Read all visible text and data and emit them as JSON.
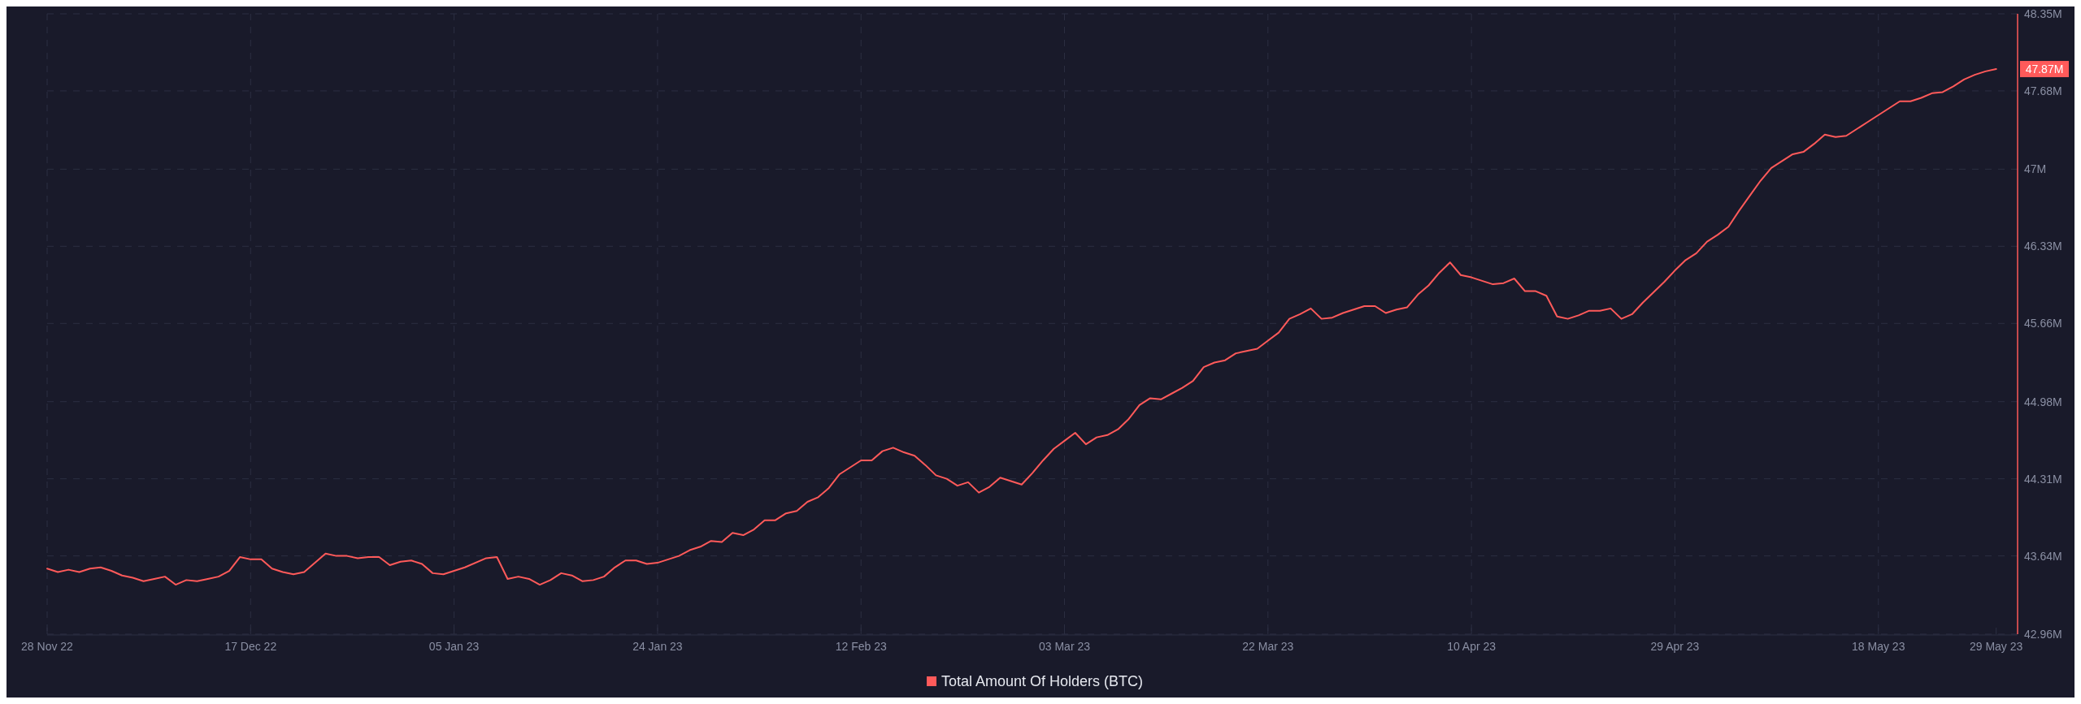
{
  "chart_data": {
    "type": "line",
    "grid": true,
    "legend": "bottom",
    "xlim": [
      "2022-11-28",
      "2023-05-31"
    ],
    "xticks": [
      {
        "value": "2022-11-28",
        "label": "28 Nov 22"
      },
      {
        "value": "2022-12-17",
        "label": "17 Dec 22"
      },
      {
        "value": "2023-01-05",
        "label": "05 Jan 23"
      },
      {
        "value": "2023-01-24",
        "label": "24 Jan 23"
      },
      {
        "value": "2023-02-12",
        "label": "12 Feb 23"
      },
      {
        "value": "2023-03-03",
        "label": "03 Mar 23"
      },
      {
        "value": "2023-03-22",
        "label": "22 Mar 23"
      },
      {
        "value": "2023-04-10",
        "label": "10 Apr 23"
      },
      {
        "value": "2023-04-29",
        "label": "29 Apr 23"
      },
      {
        "value": "2023-05-18",
        "label": "18 May 23"
      },
      {
        "value": "2023-05-29",
        "label": "29 May 23"
      }
    ],
    "ylim": [
      42.96,
      48.35
    ],
    "yticks": [
      {
        "value": 42.96,
        "label": "42.96M"
      },
      {
        "value": 43.64,
        "label": "43.64M"
      },
      {
        "value": 44.31,
        "label": "44.31M"
      },
      {
        "value": 44.98,
        "label": "44.98M"
      },
      {
        "value": 45.66,
        "label": "45.66M"
      },
      {
        "value": 46.33,
        "label": "46.33M"
      },
      {
        "value": 47,
        "label": "47M"
      },
      {
        "value": 47.68,
        "label": "47.68M"
      },
      {
        "value": 48.35,
        "label": "48.35M"
      }
    ],
    "annotations": [
      {
        "text": "47.87M",
        "x": "2023-05-29",
        "y": 47.87
      }
    ],
    "series": [
      {
        "name": "Total Amount Of Holders (BTC)",
        "color": "#ff5a5a",
        "x": [
          "2022-11-28",
          "2022-11-29",
          "2022-11-30",
          "2022-12-01",
          "2022-12-02",
          "2022-12-03",
          "2022-12-04",
          "2022-12-05",
          "2022-12-06",
          "2022-12-07",
          "2022-12-08",
          "2022-12-09",
          "2022-12-10",
          "2022-12-11",
          "2022-12-12",
          "2022-12-13",
          "2022-12-14",
          "2022-12-15",
          "2022-12-16",
          "2022-12-17",
          "2022-12-18",
          "2022-12-19",
          "2022-12-20",
          "2022-12-21",
          "2022-12-22",
          "2022-12-24",
          "2022-12-25",
          "2022-12-26",
          "2022-12-27",
          "2022-12-28",
          "2022-12-29",
          "2022-12-30",
          "2022-12-31",
          "2023-01-01",
          "2023-01-02",
          "2023-01-03",
          "2023-01-04",
          "2023-01-05",
          "2023-01-06",
          "2023-01-08",
          "2023-01-09",
          "2023-01-10",
          "2023-01-11",
          "2023-01-12",
          "2023-01-13",
          "2023-01-14",
          "2023-01-15",
          "2023-01-16",
          "2023-01-17",
          "2023-01-18",
          "2023-01-19",
          "2023-01-20",
          "2023-01-21",
          "2023-01-22",
          "2023-01-23",
          "2023-01-24",
          "2023-01-25",
          "2023-01-26",
          "2023-01-27",
          "2023-01-28",
          "2023-01-29",
          "2023-01-30",
          "2023-01-31",
          "2023-02-01",
          "2023-02-02",
          "2023-02-03",
          "2023-02-04",
          "2023-02-05",
          "2023-02-06",
          "2023-02-07",
          "2023-02-08",
          "2023-02-09",
          "2023-02-10",
          "2023-02-11",
          "2023-02-12",
          "2023-02-13",
          "2023-02-14",
          "2023-02-15",
          "2023-02-16",
          "2023-02-17",
          "2023-02-18",
          "2023-02-19",
          "2023-02-20",
          "2023-02-21",
          "2023-02-22",
          "2023-02-23",
          "2023-02-24",
          "2023-02-25",
          "2023-02-26",
          "2023-02-27",
          "2023-02-28",
          "2023-03-01",
          "2023-03-02",
          "2023-03-03",
          "2023-03-04",
          "2023-03-05",
          "2023-03-06",
          "2023-03-07",
          "2023-03-08",
          "2023-03-09",
          "2023-03-10",
          "2023-03-11",
          "2023-03-12",
          "2023-03-13",
          "2023-03-14",
          "2023-03-15",
          "2023-03-16",
          "2023-03-17",
          "2023-03-18",
          "2023-03-19",
          "2023-03-20",
          "2023-03-21",
          "2023-03-22",
          "2023-03-23",
          "2023-03-24",
          "2023-03-25",
          "2023-03-26",
          "2023-03-27",
          "2023-03-28",
          "2023-03-29",
          "2023-03-30",
          "2023-03-31",
          "2023-04-01",
          "2023-04-02",
          "2023-04-03",
          "2023-04-04",
          "2023-04-05",
          "2023-04-06",
          "2023-04-07",
          "2023-04-08",
          "2023-04-09",
          "2023-04-10",
          "2023-04-11",
          "2023-04-12",
          "2023-04-13",
          "2023-04-14",
          "2023-04-15",
          "2023-04-16",
          "2023-04-17",
          "2023-04-18",
          "2023-04-19",
          "2023-04-20",
          "2023-04-21",
          "2023-04-22",
          "2023-04-23",
          "2023-04-24",
          "2023-04-25",
          "2023-04-26",
          "2023-04-27",
          "2023-04-28",
          "2023-04-29",
          "2023-04-30",
          "2023-05-01",
          "2023-05-02",
          "2023-05-03",
          "2023-05-04",
          "2023-05-05",
          "2023-05-06",
          "2023-05-07",
          "2023-05-08",
          "2023-05-09",
          "2023-05-10",
          "2023-05-11",
          "2023-05-12",
          "2023-05-13",
          "2023-05-14",
          "2023-05-15",
          "2023-05-16",
          "2023-05-17",
          "2023-05-18",
          "2023-05-19",
          "2023-05-20",
          "2023-05-21",
          "2023-05-22",
          "2023-05-23",
          "2023-05-24",
          "2023-05-25",
          "2023-05-26",
          "2023-05-27",
          "2023-05-28",
          "2023-05-29"
        ],
        "values": [
          43.53,
          43.5,
          43.52,
          43.5,
          43.53,
          43.54,
          43.51,
          43.47,
          43.45,
          43.42,
          43.44,
          43.46,
          43.39,
          43.43,
          43.42,
          43.44,
          43.46,
          43.51,
          43.63,
          43.61,
          43.61,
          43.53,
          43.5,
          43.48,
          43.5,
          43.66,
          43.64,
          43.64,
          43.62,
          43.63,
          43.63,
          43.56,
          43.59,
          43.6,
          43.57,
          43.49,
          43.48,
          43.51,
          43.54,
          43.62,
          43.63,
          43.44,
          43.46,
          43.44,
          43.39,
          43.43,
          43.49,
          43.47,
          43.42,
          43.43,
          43.46,
          43.54,
          43.6,
          43.6,
          43.57,
          43.58,
          43.61,
          43.64,
          43.69,
          43.72,
          43.77,
          43.76,
          43.84,
          43.82,
          43.87,
          43.95,
          43.95,
          44.01,
          44.03,
          44.11,
          44.15,
          44.23,
          44.35,
          44.41,
          44.47,
          44.47,
          44.55,
          44.58,
          44.54,
          44.51,
          44.43,
          44.34,
          44.31,
          44.25,
          44.28,
          44.19,
          44.24,
          44.32,
          44.29,
          44.26,
          44.36,
          44.47,
          44.57,
          44.64,
          44.71,
          44.61,
          44.67,
          44.69,
          44.74,
          44.83,
          44.95,
          45.01,
          45.0,
          45.05,
          45.1,
          45.16,
          45.28,
          45.32,
          45.34,
          45.4,
          45.42,
          45.44,
          45.51,
          45.58,
          45.7,
          45.74,
          45.79,
          45.7,
          45.71,
          45.75,
          45.78,
          45.81,
          45.81,
          45.75,
          45.78,
          45.8,
          45.91,
          45.99,
          46.1,
          46.19,
          46.08,
          46.06,
          46.03,
          46.0,
          46.01,
          46.05,
          45.94,
          45.94,
          45.9,
          45.72,
          45.7,
          45.73,
          45.77,
          45.77,
          45.79,
          45.7,
          45.74,
          45.84,
          45.93,
          46.02,
          46.12,
          46.21,
          46.27,
          46.37,
          46.43,
          46.5,
          46.64,
          46.77,
          46.9,
          47.01,
          47.07,
          47.13,
          47.15,
          47.22,
          47.3,
          47.28,
          47.29,
          47.35,
          47.41,
          47.47,
          47.53,
          47.59,
          47.59,
          47.62,
          47.66,
          47.67,
          47.72,
          47.78,
          47.82,
          47.85,
          47.87
        ]
      }
    ]
  }
}
